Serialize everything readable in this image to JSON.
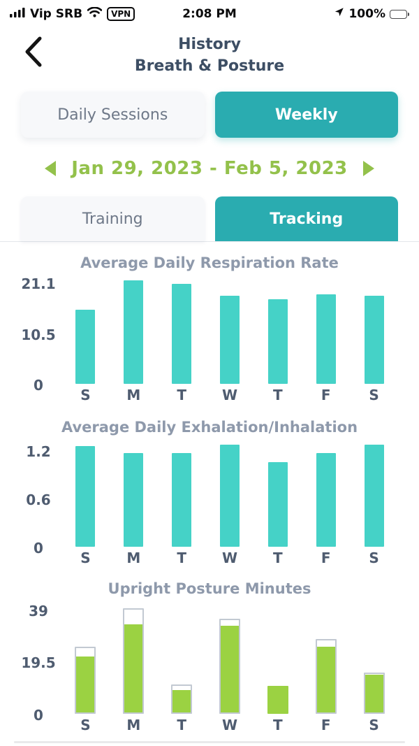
{
  "status_bar": {
    "carrier": "Vip SRB",
    "vpn_label": "VPN",
    "time": "2:08 PM",
    "battery_pct": "100%"
  },
  "header": {
    "title_line1": "History",
    "title_line2": "Breath & Posture"
  },
  "view_toggle": {
    "daily_label": "Daily Sessions",
    "weekly_label": "Weekly",
    "selected": "Weekly"
  },
  "date_nav": {
    "range": "Jan 29, 2023 - Feb 5, 2023"
  },
  "tabs": {
    "training_label": "Training",
    "tracking_label": "Tracking",
    "selected": "Tracking"
  },
  "colors": {
    "accent_teal": "#2aacb0",
    "bar_teal": "#45d2c7",
    "bar_green": "#9bd242",
    "bar_outline_gray": "#c2c9d2",
    "date_green": "#93c14b",
    "title_gray": "#8e99ab",
    "header_navy": "#3d4e64",
    "tick_navy": "#4f5c70"
  },
  "chart_data": [
    {
      "type": "bar",
      "title": "Average Daily Respiration Rate",
      "categories": [
        "S",
        "M",
        "T",
        "W",
        "T",
        "F",
        "S"
      ],
      "values": [
        15.4,
        21.6,
        20.8,
        18.4,
        17.7,
        18.7,
        18.3
      ],
      "yticks": [
        "0",
        "10.5",
        "21.1"
      ],
      "ytick_values": [
        0,
        10.5,
        21.1
      ],
      "ylim": [
        0,
        22
      ],
      "bar_color": "#45d2c7",
      "grid": false,
      "xlabel": "",
      "ylabel": ""
    },
    {
      "type": "bar",
      "title": "Average Daily Exhalation/Inhalation",
      "categories": [
        "S",
        "M",
        "T",
        "W",
        "T",
        "F",
        "S"
      ],
      "values": [
        1.26,
        1.17,
        1.17,
        1.27,
        1.06,
        1.17,
        1.27
      ],
      "yticks": [
        "0",
        "0.6",
        "1.2"
      ],
      "ytick_values": [
        0,
        0.6,
        1.2
      ],
      "ylim": [
        0,
        1.3
      ],
      "bar_color": "#45d2c7",
      "grid": false,
      "xlabel": "",
      "ylabel": ""
    },
    {
      "type": "bar",
      "title": "Upright Posture Minutes",
      "categories": [
        "S",
        "M",
        "T",
        "W",
        "T",
        "F",
        "S"
      ],
      "series": [
        {
          "name": "achieved",
          "values": [
            21.5,
            33.5,
            9,
            33,
            10.5,
            25,
            14.5
          ]
        },
        {
          "name": "goal-outline",
          "values": [
            25,
            39.5,
            11,
            35.5,
            10.5,
            28,
            15.5
          ]
        }
      ],
      "yticks": [
        "0",
        "19.5",
        "39"
      ],
      "ytick_values": [
        0,
        19.5,
        39
      ],
      "ylim": [
        0,
        41
      ],
      "bar_color": "#9bd242",
      "outline_color": "#c2c9d2",
      "grid": false,
      "xlabel": "",
      "ylabel": ""
    }
  ]
}
